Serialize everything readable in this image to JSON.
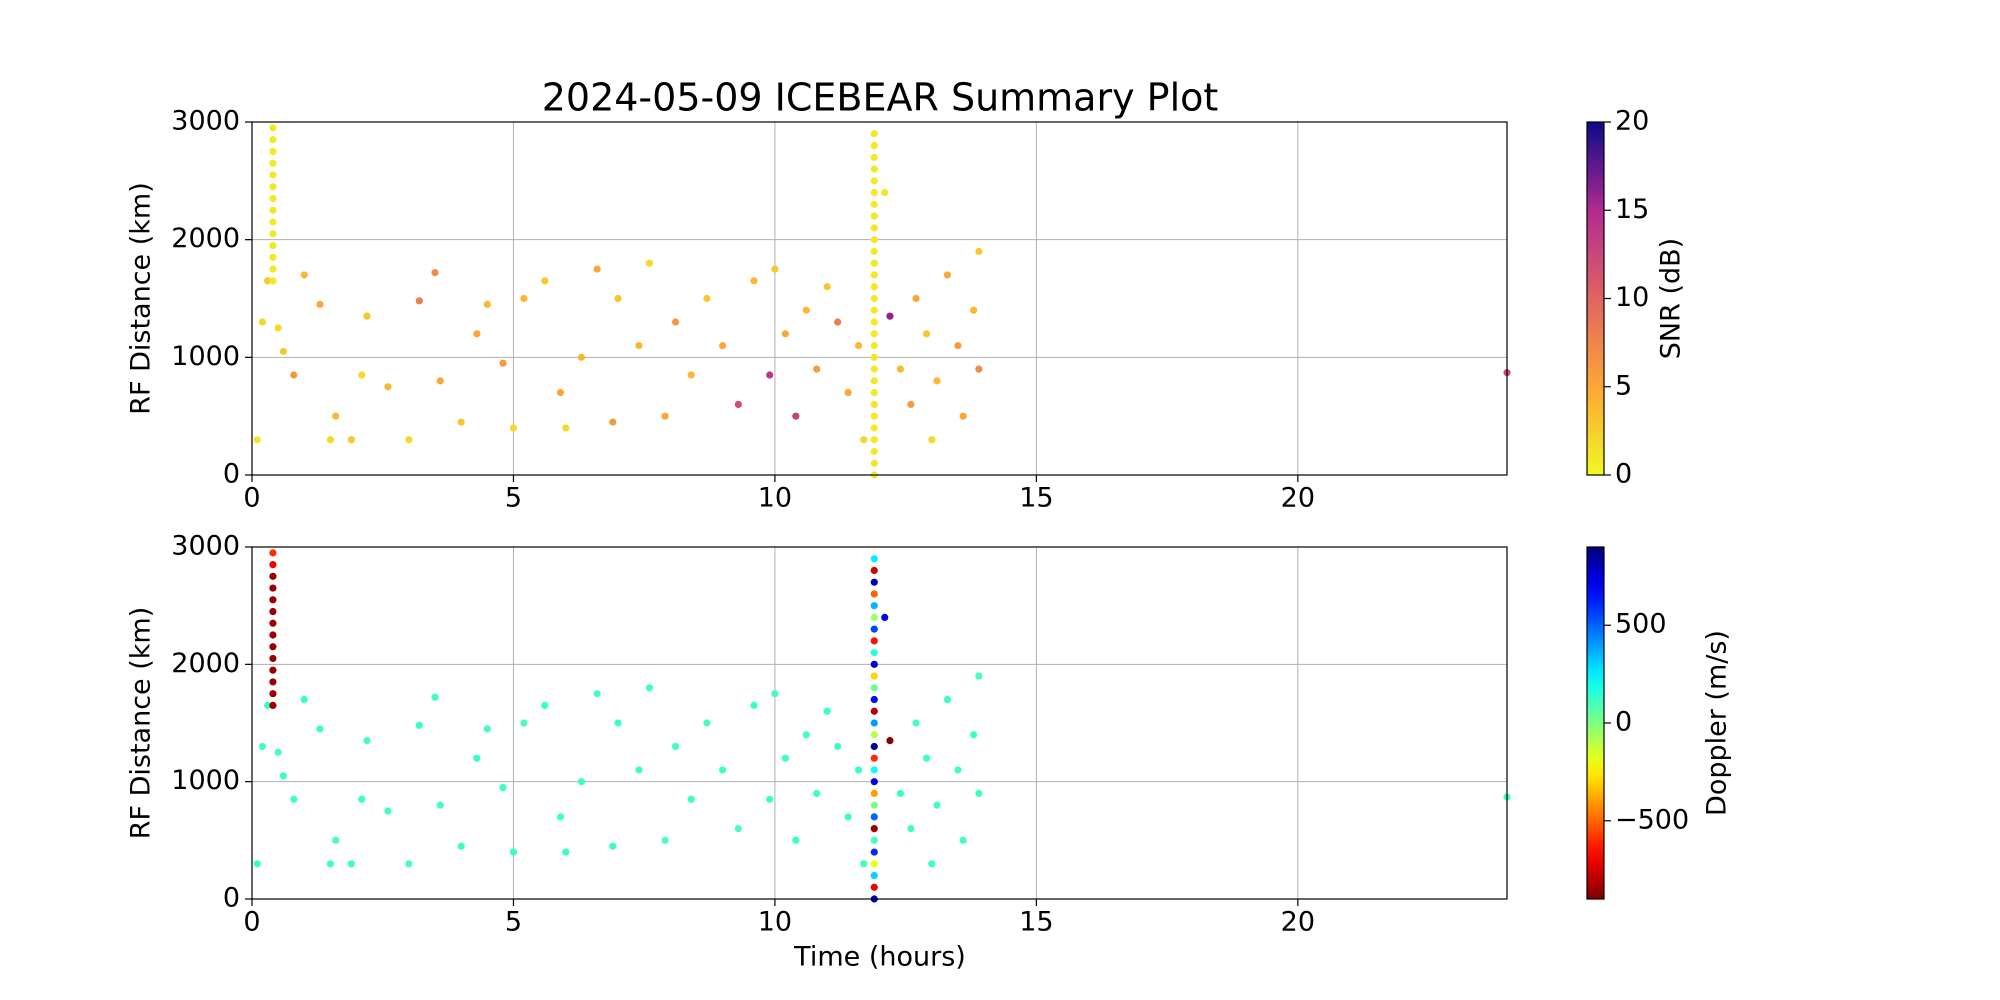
{
  "chart_data": [
    {
      "type": "scatter",
      "title": "2024-05-09 ICEBEAR Summary Plot",
      "ylabel": "RF Distance (km)",
      "colorbar_label": "SNR (dB)",
      "colormap": "plasma_r",
      "clim": [
        0,
        20
      ],
      "cticks": [
        0,
        5,
        10,
        15,
        20
      ],
      "xlim": [
        0,
        24
      ],
      "xticks": [
        0,
        5,
        10,
        15,
        20
      ],
      "ylim": [
        0,
        3000
      ],
      "yticks": [
        0,
        1000,
        2000,
        3000
      ],
      "grid": true,
      "x": [
        0.1,
        0.2,
        0.3,
        0.5,
        0.6,
        0.8,
        1.0,
        1.3,
        1.5,
        1.6,
        1.9,
        2.1,
        2.2,
        2.6,
        3.0,
        3.2,
        3.5,
        3.6,
        4.0,
        4.3,
        4.5,
        4.8,
        5.0,
        5.2,
        5.6,
        5.9,
        6.0,
        6.3,
        6.6,
        6.9,
        7.0,
        7.4,
        7.6,
        7.9,
        8.1,
        8.4,
        8.7,
        9.0,
        9.3,
        9.6,
        9.9,
        10.0,
        10.2,
        10.4,
        10.6,
        10.8,
        11.0,
        11.2,
        11.4,
        11.6,
        11.7,
        12.1,
        12.2,
        12.4,
        12.6,
        12.7,
        12.9,
        13.0,
        13.1,
        13.3,
        13.5,
        13.6,
        13.8,
        13.9,
        13.9,
        24.0,
        0.4,
        0.4,
        0.4,
        0.4,
        0.4,
        0.4,
        0.4,
        0.4,
        0.4,
        0.4,
        0.4,
        0.4,
        0.4,
        0.4,
        11.9,
        11.9,
        11.9,
        11.9,
        11.9,
        11.9,
        11.9,
        11.9,
        11.9,
        11.9,
        11.9,
        11.9,
        11.9,
        11.9,
        11.9,
        11.9,
        11.9,
        11.9,
        11.9,
        11.9,
        11.9,
        11.9,
        11.9,
        11.9,
        11.9,
        11.9,
        11.9,
        11.9,
        11.9,
        11.9
      ],
      "values": [
        300,
        1300,
        1650,
        1250,
        1050,
        850,
        1700,
        1450,
        300,
        500,
        300,
        850,
        1350,
        750,
        300,
        1480,
        1720,
        800,
        450,
        1200,
        1450,
        950,
        400,
        1500,
        1650,
        700,
        400,
        1000,
        1750,
        450,
        1500,
        1100,
        1800,
        500,
        1300,
        850,
        1500,
        1100,
        600,
        1650,
        850,
        1750,
        1200,
        500,
        1400,
        900,
        1600,
        1300,
        700,
        1100,
        300,
        2400,
        1350,
        900,
        600,
        1500,
        1200,
        300,
        800,
        1700,
        1100,
        500,
        1400,
        900,
        1900,
        870,
        1650,
        1750,
        1850,
        1950,
        2050,
        2150,
        2250,
        2350,
        2450,
        2550,
        2650,
        2750,
        2850,
        2950,
        0,
        100,
        200,
        300,
        400,
        500,
        600,
        700,
        800,
        900,
        1000,
        1100,
        1200,
        1300,
        1400,
        1500,
        1600,
        1700,
        1800,
        1900,
        2000,
        2100,
        2200,
        2300,
        2400,
        2500,
        2600,
        2700,
        2800,
        2900
      ],
      "color_values": [
        1,
        2,
        3,
        2,
        3,
        6,
        4,
        5,
        2,
        4,
        3,
        2,
        3,
        4,
        2,
        8,
        7,
        5,
        3,
        5,
        4,
        6,
        2,
        4,
        3,
        5,
        2,
        4,
        5,
        6,
        3,
        4,
        2,
        5,
        6,
        4,
        3,
        5,
        12,
        4,
        14,
        3,
        5,
        13,
        4,
        6,
        3,
        8,
        5,
        4,
        2,
        1,
        16,
        4,
        6,
        5,
        3,
        2,
        4,
        5,
        6,
        5,
        4,
        7,
        3,
        12,
        1,
        1,
        1,
        1,
        1,
        1,
        1,
        1,
        1,
        1,
        1,
        1,
        1,
        1,
        1,
        1,
        1,
        1,
        1,
        1,
        1,
        1,
        1,
        1,
        1,
        1,
        1,
        1,
        1,
        1,
        1,
        1,
        1,
        1,
        1,
        1,
        1,
        1,
        1,
        1,
        1,
        1,
        1,
        1
      ]
    },
    {
      "type": "scatter",
      "xlabel": "Time (hours)",
      "ylabel": "RF Distance (km)",
      "colorbar_label": "Doppler (m/s)",
      "colormap": "jet_r",
      "clim": [
        -900,
        900
      ],
      "cticks": [
        {
          "value": -500,
          "label": "−500"
        },
        0,
        500
      ],
      "xlim": [
        0,
        24
      ],
      "xticks": [
        0,
        5,
        10,
        15,
        20
      ],
      "ylim": [
        0,
        3000
      ],
      "yticks": [
        0,
        1000,
        2000,
        3000
      ],
      "grid": true,
      "x": [
        0.1,
        0.2,
        0.3,
        0.5,
        0.6,
        0.8,
        1.0,
        1.3,
        1.5,
        1.6,
        1.9,
        2.1,
        2.2,
        2.6,
        3.0,
        3.2,
        3.5,
        3.6,
        4.0,
        4.3,
        4.5,
        4.8,
        5.0,
        5.2,
        5.6,
        5.9,
        6.0,
        6.3,
        6.6,
        6.9,
        7.0,
        7.4,
        7.6,
        7.9,
        8.1,
        8.4,
        8.7,
        9.0,
        9.3,
        9.6,
        9.9,
        10.0,
        10.2,
        10.4,
        10.6,
        10.8,
        11.0,
        11.2,
        11.4,
        11.6,
        11.7,
        12.1,
        12.2,
        12.4,
        12.6,
        12.7,
        12.9,
        13.0,
        13.1,
        13.3,
        13.5,
        13.6,
        13.8,
        13.9,
        13.9,
        24.0,
        0.4,
        0.4,
        0.4,
        0.4,
        0.4,
        0.4,
        0.4,
        0.4,
        0.4,
        0.4,
        0.4,
        0.4,
        0.4,
        0.4,
        11.9,
        11.9,
        11.9,
        11.9,
        11.9,
        11.9,
        11.9,
        11.9,
        11.9,
        11.9,
        11.9,
        11.9,
        11.9,
        11.9,
        11.9,
        11.9,
        11.9,
        11.9,
        11.9,
        11.9,
        11.9,
        11.9,
        11.9,
        11.9,
        11.9,
        11.9,
        11.9,
        11.9,
        11.9,
        11.9
      ],
      "values": [
        300,
        1300,
        1650,
        1250,
        1050,
        850,
        1700,
        1450,
        300,
        500,
        300,
        850,
        1350,
        750,
        300,
        1480,
        1720,
        800,
        450,
        1200,
        1450,
        950,
        400,
        1500,
        1650,
        700,
        400,
        1000,
        1750,
        450,
        1500,
        1100,
        1800,
        500,
        1300,
        850,
        1500,
        1100,
        600,
        1650,
        850,
        1750,
        1200,
        500,
        1400,
        900,
        1600,
        1300,
        700,
        1100,
        300,
        2400,
        1350,
        900,
        600,
        1500,
        1200,
        300,
        800,
        1700,
        1100,
        500,
        1400,
        900,
        1900,
        870,
        1650,
        1750,
        1850,
        1950,
        2050,
        2150,
        2250,
        2350,
        2450,
        2550,
        2650,
        2750,
        2850,
        2950,
        0,
        100,
        200,
        300,
        400,
        500,
        600,
        700,
        800,
        900,
        1000,
        1100,
        1200,
        1300,
        1400,
        1500,
        1600,
        1700,
        1800,
        1900,
        2000,
        2100,
        2200,
        2300,
        2400,
        2500,
        2600,
        2700,
        2800,
        2900
      ],
      "color_values": [
        120,
        110,
        130,
        100,
        120,
        110,
        130,
        120,
        110,
        100,
        120,
        130,
        110,
        120,
        100,
        130,
        120,
        110,
        120,
        130,
        110,
        120,
        130,
        100,
        120,
        110,
        130,
        120,
        110,
        120,
        130,
        110,
        120,
        100,
        120,
        130,
        110,
        120,
        100,
        130,
        120,
        110,
        130,
        120,
        110,
        120,
        130,
        110,
        120,
        130,
        110,
        700,
        -880,
        120,
        120,
        110,
        130,
        120,
        110,
        120,
        120,
        110,
        130,
        120,
        110,
        120,
        -850,
        -850,
        -850,
        -850,
        -850,
        -850,
        -850,
        -850,
        -850,
        -850,
        -850,
        -850,
        -700,
        -600,
        800,
        -700,
        300,
        -200,
        600,
        100,
        -850,
        500,
        0,
        -400,
        700,
        200,
        -600,
        850,
        -100,
        400,
        -800,
        650,
        50,
        -300,
        750,
        150,
        -650,
        550,
        -50,
        350,
        -500,
        800,
        -750,
        250
      ]
    }
  ]
}
